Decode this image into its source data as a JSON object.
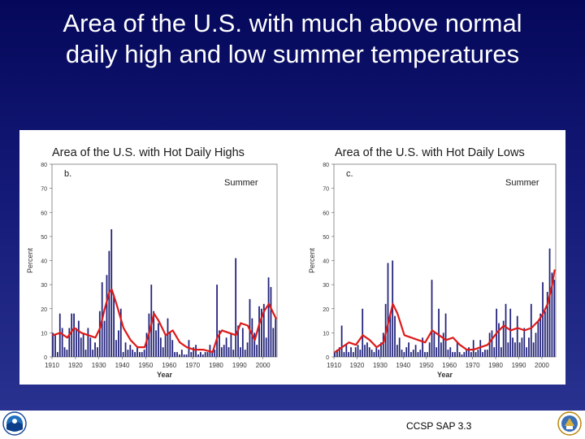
{
  "slide": {
    "title_line1": "Area of the U.S. with much above normal",
    "title_line2": "daily high and low summer temperatures",
    "credit": "CCSP SAP 3.3",
    "logo_left": "noaa-logo",
    "logo_right": "department-of-commerce-seal"
  },
  "colors": {
    "bar": "#22237a",
    "smooth_line": "#dd1a1a",
    "axis": "#333333",
    "background": "#0b1068"
  },
  "chart_data": [
    {
      "type": "bar",
      "title": "Area of the U.S. with Hot Daily Highs",
      "panel_label": "b.",
      "season_label": "Summer",
      "xlabel": "Year",
      "ylabel": "Percent",
      "xlim": [
        1910,
        2006
      ],
      "ylim": [
        0,
        80
      ],
      "x_ticks": [
        1910,
        1920,
        1930,
        1940,
        1950,
        1960,
        1970,
        1980,
        1990,
        2000
      ],
      "y_ticks": [
        0,
        10,
        20,
        30,
        40,
        50,
        60,
        70,
        80
      ],
      "series": [
        {
          "type": "bar",
          "x": [
            1910,
            1911,
            1912,
            1913,
            1914,
            1915,
            1916,
            1917,
            1918,
            1919,
            1920,
            1921,
            1922,
            1923,
            1924,
            1925,
            1926,
            1927,
            1928,
            1929,
            1930,
            1931,
            1932,
            1933,
            1934,
            1935,
            1936,
            1937,
            1938,
            1939,
            1940,
            1941,
            1942,
            1943,
            1944,
            1945,
            1946,
            1947,
            1948,
            1949,
            1950,
            1951,
            1952,
            1953,
            1954,
            1955,
            1956,
            1957,
            1958,
            1959,
            1960,
            1961,
            1962,
            1963,
            1964,
            1965,
            1966,
            1967,
            1968,
            1969,
            1970,
            1971,
            1972,
            1973,
            1974,
            1975,
            1976,
            1977,
            1978,
            1979,
            1980,
            1981,
            1982,
            1983,
            1984,
            1985,
            1986,
            1987,
            1988,
            1989,
            1990,
            1991,
            1992,
            1993,
            1994,
            1995,
            1996,
            1997,
            1998,
            1999,
            2000,
            2001,
            2002,
            2003,
            2004,
            2005
          ],
          "values": [
            10,
            9,
            2,
            18,
            12,
            4,
            3,
            12,
            18,
            18,
            12,
            15,
            8,
            10,
            3,
            12,
            8,
            3,
            6,
            4,
            19,
            31,
            15,
            34,
            44,
            53,
            26,
            7,
            11,
            20,
            2,
            6,
            3,
            5,
            3,
            2,
            4,
            2,
            2,
            3,
            10,
            18,
            30,
            19,
            11,
            14,
            8,
            4,
            9,
            16,
            10,
            7,
            2,
            2,
            1,
            3,
            1,
            1,
            7,
            2,
            4,
            5,
            1,
            2,
            1,
            2,
            2,
            5,
            2,
            3,
            30,
            11,
            4,
            5,
            8,
            4,
            10,
            3,
            41,
            13,
            4,
            12,
            3,
            6,
            24,
            16,
            10,
            5,
            21,
            20,
            22,
            8,
            33,
            29,
            12,
            16
          ]
        },
        {
          "type": "line",
          "x": [
            1910,
            1913,
            1916,
            1919,
            1922,
            1925,
            1928,
            1930,
            1932,
            1934,
            1935,
            1937,
            1940,
            1943,
            1946,
            1949,
            1951,
            1953,
            1955,
            1958,
            1961,
            1964,
            1967,
            1970,
            1974,
            1978,
            1980,
            1982,
            1985,
            1988,
            1990,
            1993,
            1996,
            1998,
            2000,
            2002,
            2005
          ],
          "values": [
            9,
            10,
            8,
            12,
            10,
            9,
            8,
            12,
            20,
            27,
            28,
            22,
            12,
            7,
            4,
            4,
            10,
            18,
            15,
            9,
            11,
            6,
            4,
            3,
            3,
            2,
            8,
            11,
            10,
            9,
            14,
            13,
            7,
            14,
            19,
            22,
            16
          ]
        }
      ]
    },
    {
      "type": "bar",
      "title": "Area of the U.S. with Hot Daily Lows",
      "panel_label": "c.",
      "season_label": "Summer",
      "xlabel": "Year",
      "ylabel": "Percent",
      "xlim": [
        1910,
        2006
      ],
      "ylim": [
        0,
        80
      ],
      "x_ticks": [
        1910,
        1920,
        1930,
        1940,
        1950,
        1960,
        1970,
        1980,
        1990,
        2000
      ],
      "y_ticks": [
        0,
        10,
        20,
        30,
        40,
        50,
        60,
        70,
        80
      ],
      "series": [
        {
          "type": "bar",
          "x": [
            1910,
            1911,
            1912,
            1913,
            1914,
            1915,
            1916,
            1917,
            1918,
            1919,
            1920,
            1921,
            1922,
            1923,
            1924,
            1925,
            1926,
            1927,
            1928,
            1929,
            1930,
            1931,
            1932,
            1933,
            1934,
            1935,
            1936,
            1937,
            1938,
            1939,
            1940,
            1941,
            1942,
            1943,
            1944,
            1945,
            1946,
            1947,
            1948,
            1949,
            1950,
            1951,
            1952,
            1953,
            1954,
            1955,
            1956,
            1957,
            1958,
            1959,
            1960,
            1961,
            1962,
            1963,
            1964,
            1965,
            1966,
            1967,
            1968,
            1969,
            1970,
            1971,
            1972,
            1973,
            1974,
            1975,
            1976,
            1977,
            1978,
            1979,
            1980,
            1981,
            1982,
            1983,
            1984,
            1985,
            1986,
            1987,
            1988,
            1989,
            1990,
            1991,
            1992,
            1993,
            1994,
            1995,
            1996,
            1997,
            1998,
            1999,
            2000,
            2001,
            2002,
            2003,
            2004,
            2005
          ],
          "values": [
            2,
            3,
            4,
            13,
            2,
            5,
            2,
            4,
            2,
            4,
            5,
            3,
            20,
            5,
            6,
            4,
            3,
            2,
            4,
            3,
            6,
            10,
            22,
            39,
            18,
            40,
            17,
            5,
            8,
            3,
            2,
            4,
            6,
            2,
            3,
            5,
            2,
            3,
            8,
            2,
            2,
            6,
            32,
            10,
            4,
            20,
            6,
            10,
            18,
            3,
            4,
            2,
            2,
            6,
            2,
            1,
            2,
            3,
            4,
            2,
            7,
            2,
            3,
            7,
            2,
            3,
            3,
            10,
            11,
            4,
            20,
            14,
            4,
            15,
            22,
            6,
            20,
            8,
            6,
            17,
            6,
            8,
            12,
            4,
            8,
            22,
            6,
            10,
            15,
            18,
            31,
            19,
            27,
            45,
            35,
            32
          ]
        },
        {
          "type": "line",
          "x": [
            1910,
            1913,
            1916,
            1919,
            1922,
            1925,
            1928,
            1931,
            1933,
            1935,
            1937,
            1940,
            1943,
            1946,
            1949,
            1952,
            1955,
            1958,
            1961,
            1964,
            1967,
            1970,
            1973,
            1976,
            1980,
            1983,
            1986,
            1989,
            1992,
            1995,
            1998,
            2000,
            2002,
            2004,
            2005
          ],
          "values": [
            2,
            4,
            6,
            5,
            9,
            7,
            4,
            6,
            14,
            22,
            18,
            9,
            8,
            7,
            6,
            11,
            9,
            7,
            8,
            5,
            3,
            3,
            4,
            5,
            10,
            13,
            11,
            12,
            11,
            12,
            15,
            18,
            22,
            30,
            36
          ]
        }
      ]
    }
  ]
}
